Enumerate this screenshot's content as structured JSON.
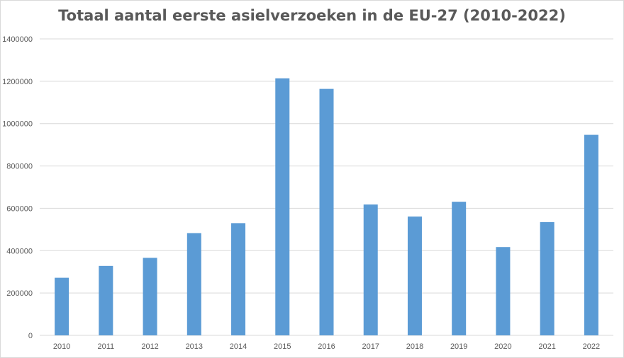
{
  "chart_data": {
    "type": "bar",
    "title": "Totaal aantal eerste asielverzoeken in de EU-27 (2010-2022)",
    "xlabel": "",
    "ylabel": "",
    "categories": [
      "2010",
      "2011",
      "2012",
      "2013",
      "2014",
      "2015",
      "2016",
      "2017",
      "2018",
      "2019",
      "2020",
      "2021",
      "2022"
    ],
    "values": [
      272000,
      328000,
      366000,
      483000,
      530000,
      1214000,
      1164000,
      618000,
      561000,
      631000,
      417000,
      535000,
      947000
    ],
    "yticks": [
      "0",
      "200000",
      "400000",
      "600000",
      "800000",
      "1000000",
      "1200000",
      "1400000"
    ],
    "ylim": [
      0,
      1400000
    ],
    "grid": true,
    "legend": "none",
    "colors": {
      "bar": "#5b9bd5",
      "grid": "#d9d9d9",
      "text": "#595959"
    }
  }
}
